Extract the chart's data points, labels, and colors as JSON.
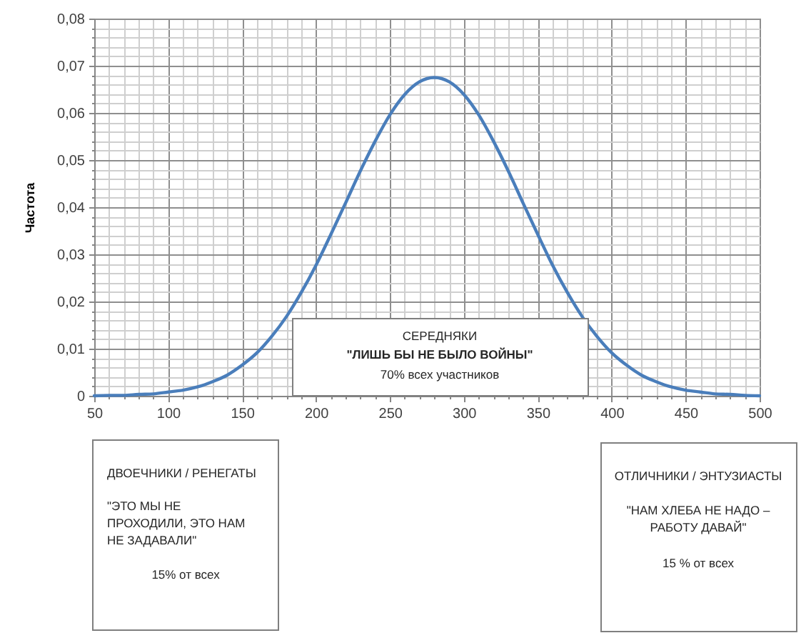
{
  "chart_data": {
    "type": "line",
    "ylabel": "Частота",
    "x": [
      50,
      60,
      70,
      80,
      90,
      100,
      110,
      120,
      130,
      140,
      150,
      160,
      170,
      180,
      190,
      200,
      210,
      220,
      230,
      240,
      250,
      260,
      270,
      280,
      290,
      300,
      310,
      320,
      330,
      340,
      350,
      360,
      370,
      380,
      390,
      400,
      410,
      420,
      430,
      440,
      450,
      460,
      470,
      480,
      490,
      500
    ],
    "series": [
      {
        "color": "#4a7ebb",
        "values": [
          0,
          0.0001,
          0.0001,
          0.0003,
          0.0004,
          0.0008,
          0.0012,
          0.0019,
          0.003,
          0.0044,
          0.0065,
          0.0091,
          0.0126,
          0.0168,
          0.0219,
          0.0277,
          0.0342,
          0.0409,
          0.0477,
          0.054,
          0.0596,
          0.0639,
          0.0666,
          0.0675,
          0.0666,
          0.0639,
          0.0596,
          0.054,
          0.0477,
          0.0409,
          0.0342,
          0.0277,
          0.0219,
          0.0168,
          0.0126,
          0.0091,
          0.0065,
          0.0044,
          0.003,
          0.0019,
          0.0012,
          0.0008,
          0.0004,
          0.0003,
          0.0001,
          0
        ]
      }
    ],
    "xlim": [
      50,
      500
    ],
    "ylim": [
      0,
      0.08
    ],
    "xticks": [
      50,
      {
        "value": 60,
        "label": null
      },
      {
        "value": 70,
        "label": null
      },
      {
        "value": 80,
        "label": null
      },
      {
        "value": 90,
        "label": null
      },
      100,
      {
        "value": 110,
        "label": null
      },
      {
        "value": 120,
        "label": null
      },
      {
        "value": 130,
        "label": null
      },
      {
        "value": 140,
        "label": null
      },
      150,
      {
        "value": 160,
        "label": null
      },
      {
        "value": 170,
        "label": null
      },
      {
        "value": 180,
        "label": null
      },
      {
        "value": 190,
        "label": null
      },
      200,
      {
        "value": 210,
        "label": null
      },
      {
        "value": 220,
        "label": null
      },
      {
        "value": 230,
        "label": null
      },
      {
        "value": 240,
        "label": null
      },
      250,
      {
        "value": 260,
        "label": null
      },
      {
        "value": 270,
        "label": null
      },
      {
        "value": 280,
        "label": null
      },
      {
        "value": 290,
        "label": null
      },
      300,
      {
        "value": 310,
        "label": null
      },
      {
        "value": 320,
        "label": null
      },
      {
        "value": 330,
        "label": null
      },
      {
        "value": 340,
        "label": null
      },
      350,
      {
        "value": 360,
        "label": null
      },
      {
        "value": 370,
        "label": null
      },
      {
        "value": 380,
        "label": null
      },
      {
        "value": 390,
        "label": null
      },
      400,
      {
        "value": 410,
        "label": null
      },
      {
        "value": 420,
        "label": null
      },
      {
        "value": 430,
        "label": null
      },
      {
        "value": 440,
        "label": null
      },
      450,
      {
        "value": 460,
        "label": null
      },
      {
        "value": 470,
        "label": null
      },
      {
        "value": 480,
        "label": null
      },
      {
        "value": 490,
        "label": null
      },
      500
    ],
    "yticks": [
      0,
      {
        "value": 0.002,
        "label": null
      },
      {
        "value": 0.004,
        "label": null
      },
      {
        "value": 0.006,
        "label": null
      },
      {
        "value": 0.008,
        "label": null
      },
      {
        "value": 0.01,
        "label": "0,01"
      },
      {
        "value": 0.012,
        "label": null
      },
      {
        "value": 0.014,
        "label": null
      },
      {
        "value": 0.016,
        "label": null
      },
      {
        "value": 0.018,
        "label": null
      },
      {
        "value": 0.02,
        "label": "0,02"
      },
      {
        "value": 0.022,
        "label": null
      },
      {
        "value": 0.024,
        "label": null
      },
      {
        "value": 0.026,
        "label": null
      },
      {
        "value": 0.028,
        "label": null
      },
      {
        "value": 0.03,
        "label": "0,03"
      },
      {
        "value": 0.032,
        "label": null
      },
      {
        "value": 0.034,
        "label": null
      },
      {
        "value": 0.036,
        "label": null
      },
      {
        "value": 0.038,
        "label": null
      },
      {
        "value": 0.04,
        "label": "0,04"
      },
      {
        "value": 0.042,
        "label": null
      },
      {
        "value": 0.044,
        "label": null
      },
      {
        "value": 0.046,
        "label": null
      },
      {
        "value": 0.048,
        "label": null
      },
      {
        "value": 0.05,
        "label": "0,05"
      },
      {
        "value": 0.052,
        "label": null
      },
      {
        "value": 0.054,
        "label": null
      },
      {
        "value": 0.056,
        "label": null
      },
      {
        "value": 0.058,
        "label": null
      },
      {
        "value": 0.06,
        "label": "0,06"
      },
      {
        "value": 0.062,
        "label": null
      },
      {
        "value": 0.064,
        "label": null
      },
      {
        "value": 0.066,
        "label": null
      },
      {
        "value": 0.068,
        "label": null
      },
      {
        "value": 0.07,
        "label": "0,07"
      },
      {
        "value": 0.072,
        "label": null
      },
      {
        "value": 0.074,
        "label": null
      },
      {
        "value": 0.076,
        "label": null
      },
      {
        "value": 0.078,
        "label": null
      },
      {
        "value": 0.08,
        "label": "0,08"
      }
    ],
    "grid": true,
    "annotations": [
      "СЕРЕДНЯКИ",
      "\"ЛИШЬ БЫ НЕ БЫЛО ВОЙНЫ\"",
      "70% всех участников",
      "ДВОЕЧНИКИ / РЕНЕГАТЫ",
      "\"ЭТО МЫ НЕ ПРОХОДИЛИ, ЭТО НАМ НЕ ЗАДАВАЛИ\"",
      "15% от всех",
      "ОТЛИЧНИКИ / ЭНТУЗИАСТЫ",
      "\"НАМ ХЛЕБА НЕ НАДО – РАБОТУ ДАВАЙ\"",
      "15 % от всех"
    ]
  }
}
